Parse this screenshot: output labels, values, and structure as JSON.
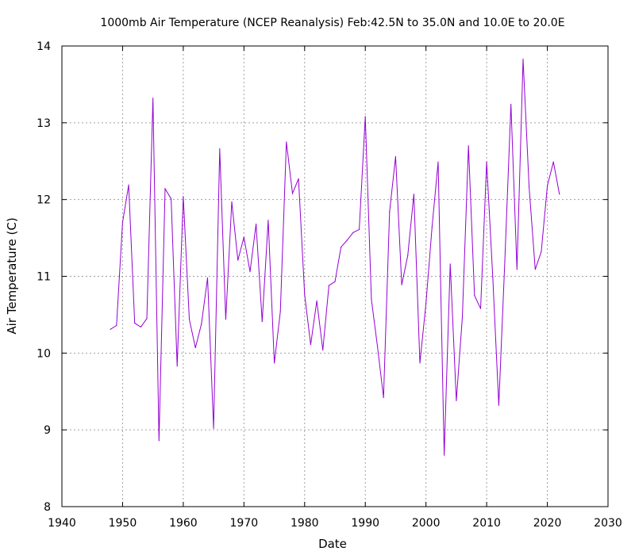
{
  "chart_data": {
    "type": "line",
    "title": "1000mb Air Temperature (NCEP Reanalysis) Feb:42.5N to 35.0N and 10.0E to 20.0E",
    "xlabel": "Date",
    "ylabel": "Air Temperature (C)",
    "xlim": [
      1940,
      2030
    ],
    "ylim": [
      8,
      14
    ],
    "xticks": [
      1940,
      1950,
      1960,
      1970,
      1980,
      1990,
      2000,
      2010,
      2020,
      2030
    ],
    "yticks": [
      8,
      9,
      10,
      11,
      12,
      13,
      14
    ],
    "grid": true,
    "legend": "none",
    "line_color": "#9400d3",
    "series": [
      {
        "x": [
          1948,
          1949,
          1950,
          1951,
          1952,
          1953,
          1954,
          1955,
          1956,
          1957,
          1958,
          1959,
          1960,
          1961,
          1962,
          1963,
          1964,
          1965,
          1966,
          1967,
          1968,
          1969,
          1970,
          1971,
          1972,
          1973,
          1974,
          1975,
          1976,
          1977,
          1978,
          1979,
          1980,
          1981,
          1982,
          1983,
          1984,
          1985,
          1986,
          1987,
          1988,
          1989,
          1990,
          1991,
          1992,
          1993,
          1994,
          1995,
          1996,
          1997,
          1998,
          1999,
          2000,
          2001,
          2002,
          2003,
          2004,
          2005,
          2006,
          2007,
          2008,
          2009,
          2010,
          2011,
          2012,
          2013,
          2014,
          2015,
          2016,
          2017,
          2018,
          2019,
          2020,
          2021,
          2022
        ],
        "y": [
          10.31,
          10.36,
          11.7,
          12.19,
          10.39,
          10.34,
          10.45,
          13.32,
          8.86,
          12.14,
          12.01,
          9.83,
          12.04,
          10.44,
          10.07,
          10.38,
          10.98,
          9.02,
          12.66,
          10.44,
          11.97,
          11.21,
          11.51,
          11.06,
          11.68,
          10.41,
          11.73,
          9.87,
          10.54,
          12.75,
          12.08,
          12.27,
          10.76,
          10.11,
          10.68,
          10.04,
          10.88,
          10.93,
          11.38,
          11.47,
          11.57,
          11.61,
          13.08,
          10.7,
          10.09,
          9.42,
          11.84,
          12.56,
          10.89,
          11.27,
          12.07,
          9.87,
          10.65,
          11.64,
          12.49,
          8.67,
          11.16,
          9.38,
          10.47,
          12.7,
          10.75,
          10.58,
          12.49,
          10.99,
          9.32,
          11.2,
          13.24,
          11.09,
          13.83,
          12.16,
          11.09,
          11.32,
          12.18,
          12.49,
          12.07
        ]
      }
    ]
  }
}
